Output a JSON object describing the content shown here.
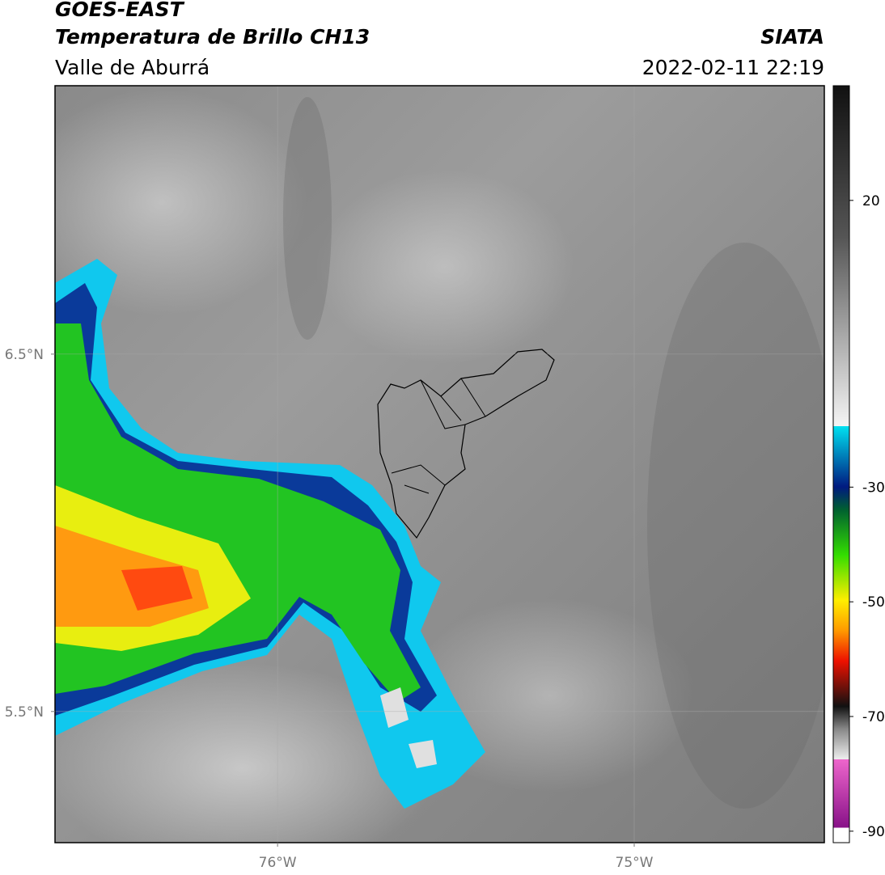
{
  "header": {
    "title": "GOES-EAST",
    "subtitle": "Temperatura de Brillo CH13",
    "region": "Valle de Aburrá",
    "source": "SIATA",
    "datetime": "2022-02-11 22:19"
  },
  "map": {
    "lonlim": [
      -76.624,
      -74.467
    ],
    "latlim": [
      5.133,
      7.251
    ],
    "lon_ticks": [
      {
        "value": -76,
        "label": "76°W"
      },
      {
        "value": -75,
        "label": "75°W"
      }
    ],
    "lat_ticks": [
      {
        "value": 6.5,
        "label": "6.5°N"
      },
      {
        "value": 5.5,
        "label": "5.5°N"
      }
    ]
  },
  "colorbar": {
    "lim": [
      -92,
      40
    ],
    "ticks": [
      20,
      -30,
      -50,
      -70,
      -90
    ]
  }
}
